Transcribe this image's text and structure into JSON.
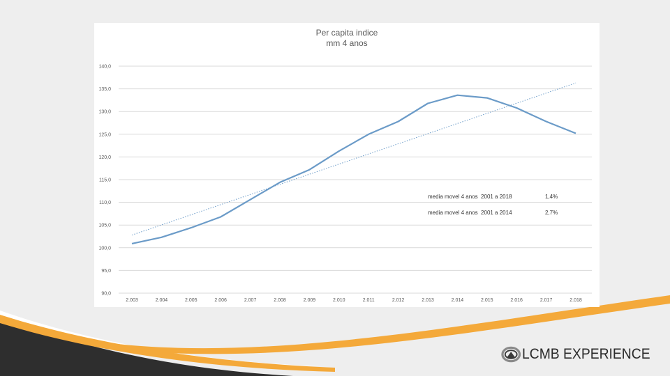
{
  "slide": {
    "brand": {
      "name": "LCMB EXPERIENCE"
    },
    "colors": {
      "background": "#eeeeee",
      "accent_orange": "#f4a93a",
      "band_dark": "#2e2e2e",
      "series": "#6b9bc8"
    }
  },
  "chart_data": {
    "type": "line",
    "title": "Per capita indice",
    "subtitle": "mm 4 anos",
    "xlabel": "",
    "ylabel": "",
    "ylim": [
      90,
      140
    ],
    "yticks": [
      "90,0",
      "95,0",
      "100,0",
      "105,0",
      "110,0",
      "115,0",
      "120,0",
      "125,0",
      "130,0",
      "135,0",
      "140,0"
    ],
    "categories": [
      "2.003",
      "2.004",
      "2.005",
      "2.006",
      "2.007",
      "2.008",
      "2.009",
      "2.010",
      "2.011",
      "2.012",
      "2.013",
      "2.014",
      "2.015",
      "2.016",
      "2.017",
      "2.018"
    ],
    "series": [
      {
        "values": [
          100.9,
          102.3,
          104.4,
          106.8,
          110.6,
          114.4,
          117.2,
          121.3,
          125.0,
          127.8,
          131.8,
          133.6,
          133.0,
          130.8,
          127.8,
          125.2
        ]
      }
    ],
    "trendline": {
      "style": "dotted",
      "values": [
        102.8,
        136.3
      ]
    },
    "grid": true,
    "legend": "none",
    "annotations": [
      {
        "label": "media movel 4 anos  2001 a 2018",
        "value": "1,4%"
      },
      {
        "label": "media movel 4 anos  2001 a 2014",
        "value": "2,7%"
      }
    ]
  }
}
